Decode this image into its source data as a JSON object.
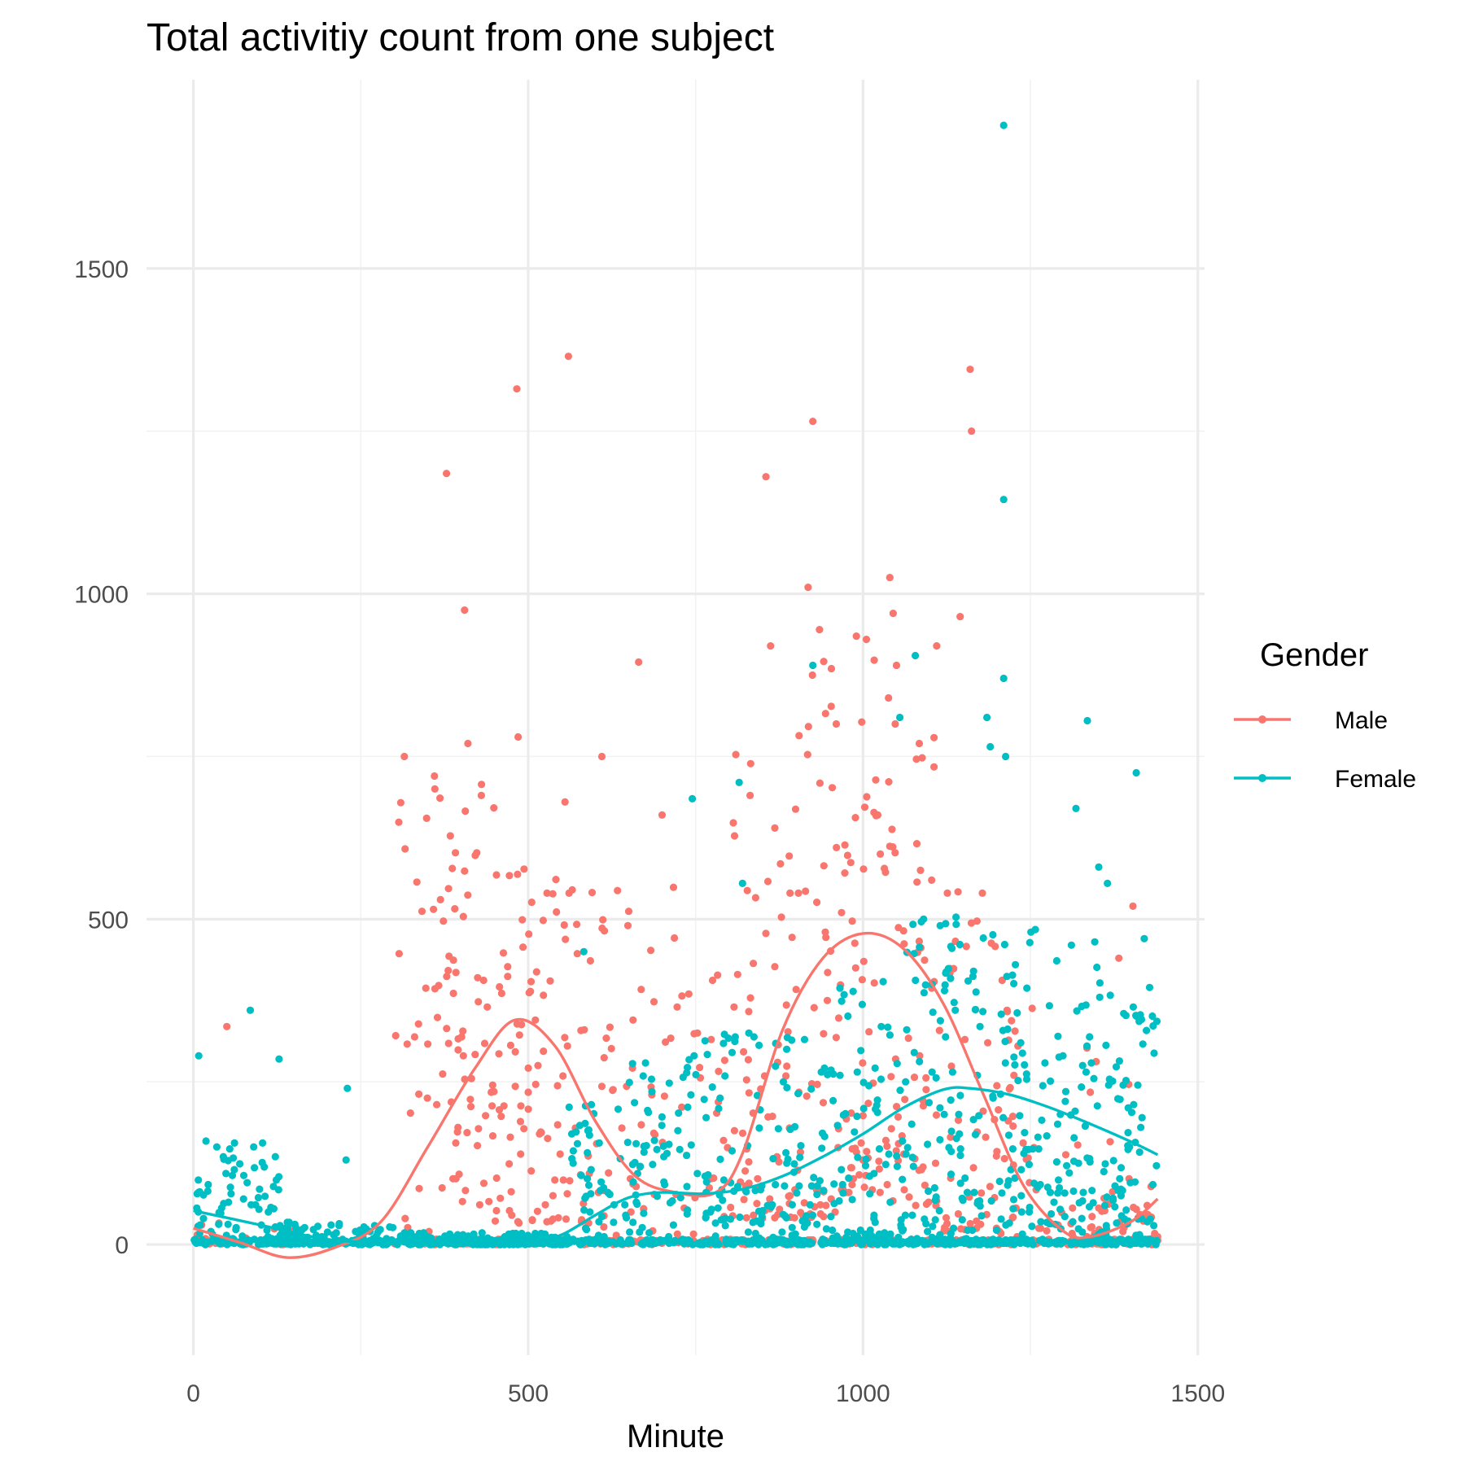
{
  "chart_data": {
    "type": "scatter",
    "title": "Total activitiy count from one subject",
    "xlabel": "Minute",
    "ylabel": "",
    "xlim": [
      -70,
      1510
    ],
    "ylim": [
      -170,
      1790
    ],
    "x_ticks": [
      0,
      500,
      1000,
      1500
    ],
    "y_ticks": [
      0,
      500,
      1000,
      1500
    ],
    "x_minor": [
      250,
      750,
      1250
    ],
    "y_minor": [
      250,
      750,
      1250
    ],
    "grid": true,
    "legend": {
      "title": "Gender",
      "position": "right"
    },
    "series": [
      {
        "name": "Male",
        "color": "#F8766D",
        "smooth": [
          [
            0,
            25
          ],
          [
            70,
            3
          ],
          [
            140,
            -20
          ],
          [
            210,
            -5
          ],
          [
            280,
            35
          ],
          [
            350,
            150
          ],
          [
            420,
            270
          ],
          [
            480,
            345
          ],
          [
            540,
            305
          ],
          [
            600,
            190
          ],
          [
            660,
            105
          ],
          [
            720,
            80
          ],
          [
            780,
            80
          ],
          [
            820,
            140
          ],
          [
            880,
            330
          ],
          [
            940,
            440
          ],
          [
            1000,
            478
          ],
          [
            1060,
            455
          ],
          [
            1120,
            370
          ],
          [
            1180,
            230
          ],
          [
            1240,
            90
          ],
          [
            1300,
            20
          ],
          [
            1340,
            12
          ],
          [
            1400,
            35
          ],
          [
            1440,
            70
          ]
        ],
        "clusters": [
          [
            2,
            60,
            0,
            40,
            12,
            101
          ],
          [
            60,
            300,
            0,
            25,
            8,
            102
          ],
          [
            300,
            370,
            20,
            700,
            28,
            103
          ],
          [
            370,
            450,
            60,
            720,
            60,
            104
          ],
          [
            450,
            520,
            30,
            620,
            55,
            105
          ],
          [
            520,
            600,
            30,
            620,
            45,
            106
          ],
          [
            600,
            720,
            0,
            560,
            50,
            107
          ],
          [
            720,
            800,
            0,
            420,
            30,
            108
          ],
          [
            800,
            880,
            40,
            780,
            55,
            109
          ],
          [
            880,
            960,
            40,
            900,
            60,
            110
          ],
          [
            960,
            1040,
            80,
            900,
            65,
            111
          ],
          [
            1040,
            1120,
            60,
            780,
            55,
            112
          ],
          [
            1120,
            1200,
            20,
            560,
            45,
            113
          ],
          [
            1200,
            1260,
            0,
            450,
            35,
            114
          ],
          [
            1260,
            1440,
            0,
            60,
            60,
            115
          ],
          [
            1300,
            1440,
            60,
            320,
            12,
            116
          ]
        ],
        "outliers": [
          [
            50,
            335
          ],
          [
            315,
            750
          ],
          [
            360,
            720
          ],
          [
            378,
            1185
          ],
          [
            405,
            975
          ],
          [
            410,
            770
          ],
          [
            430,
            690
          ],
          [
            483,
            1315
          ],
          [
            485,
            780
          ],
          [
            560,
            1365
          ],
          [
            555,
            680
          ],
          [
            610,
            750
          ],
          [
            665,
            895
          ],
          [
            700,
            660
          ],
          [
            855,
            1180
          ],
          [
            862,
            920
          ],
          [
            918,
            1010
          ],
          [
            925,
            1265
          ],
          [
            935,
            945
          ],
          [
            990,
            935
          ],
          [
            1005,
            930
          ],
          [
            1040,
            1025
          ],
          [
            1045,
            970
          ],
          [
            1110,
            920
          ],
          [
            1145,
            965
          ],
          [
            1160,
            1345
          ],
          [
            1162,
            1250
          ],
          [
            1050,
            890
          ],
          [
            960,
            800
          ],
          [
            1048,
            800
          ],
          [
            1403,
            520
          ],
          [
            1382,
            440
          ]
        ]
      },
      {
        "name": "Female",
        "color": "#00BFC4",
        "smooth": [
          [
            0,
            52
          ],
          [
            100,
            30
          ],
          [
            200,
            8
          ],
          [
            300,
            2
          ],
          [
            400,
            0
          ],
          [
            450,
            0
          ],
          [
            500,
            2
          ],
          [
            550,
            15
          ],
          [
            600,
            45
          ],
          [
            650,
            72
          ],
          [
            700,
            80
          ],
          [
            760,
            78
          ],
          [
            820,
            85
          ],
          [
            880,
            105
          ],
          [
            940,
            135
          ],
          [
            1000,
            170
          ],
          [
            1060,
            210
          ],
          [
            1120,
            238
          ],
          [
            1160,
            240
          ],
          [
            1220,
            230
          ],
          [
            1280,
            210
          ],
          [
            1340,
            185
          ],
          [
            1400,
            158
          ],
          [
            1440,
            138
          ]
        ],
        "clusters": [
          [
            0,
            130,
            0,
            160,
            90,
            201
          ],
          [
            130,
            300,
            0,
            35,
            110,
            202
          ],
          [
            300,
            560,
            0,
            18,
            180,
            203
          ],
          [
            560,
            650,
            0,
            220,
            55,
            204
          ],
          [
            650,
            760,
            0,
            300,
            70,
            205
          ],
          [
            760,
            860,
            0,
            330,
            70,
            206
          ],
          [
            860,
            960,
            0,
            320,
            80,
            207
          ],
          [
            960,
            1060,
            0,
            420,
            85,
            208
          ],
          [
            1060,
            1160,
            0,
            520,
            90,
            209
          ],
          [
            1160,
            1260,
            0,
            500,
            85,
            210
          ],
          [
            1260,
            1360,
            0,
            480,
            80,
            211
          ],
          [
            1360,
            1440,
            0,
            400,
            75,
            212
          ]
        ],
        "outliers": [
          [
            8,
            290
          ],
          [
            35,
            150
          ],
          [
            85,
            360
          ],
          [
            128,
            285
          ],
          [
            230,
            240
          ],
          [
            228,
            130
          ],
          [
            583,
            450
          ],
          [
            745,
            685
          ],
          [
            815,
            710
          ],
          [
            820,
            555
          ],
          [
            925,
            890
          ],
          [
            1055,
            810
          ],
          [
            1078,
            905
          ],
          [
            1185,
            810
          ],
          [
            1190,
            765
          ],
          [
            1210,
            1720
          ],
          [
            1210,
            1145
          ],
          [
            1210,
            870
          ],
          [
            1213,
            750
          ],
          [
            1335,
            805
          ],
          [
            1318,
            670
          ],
          [
            1408,
            725
          ],
          [
            1352,
            580
          ],
          [
            1365,
            555
          ],
          [
            1420,
            470
          ],
          [
            1428,
            395
          ]
        ]
      }
    ]
  }
}
